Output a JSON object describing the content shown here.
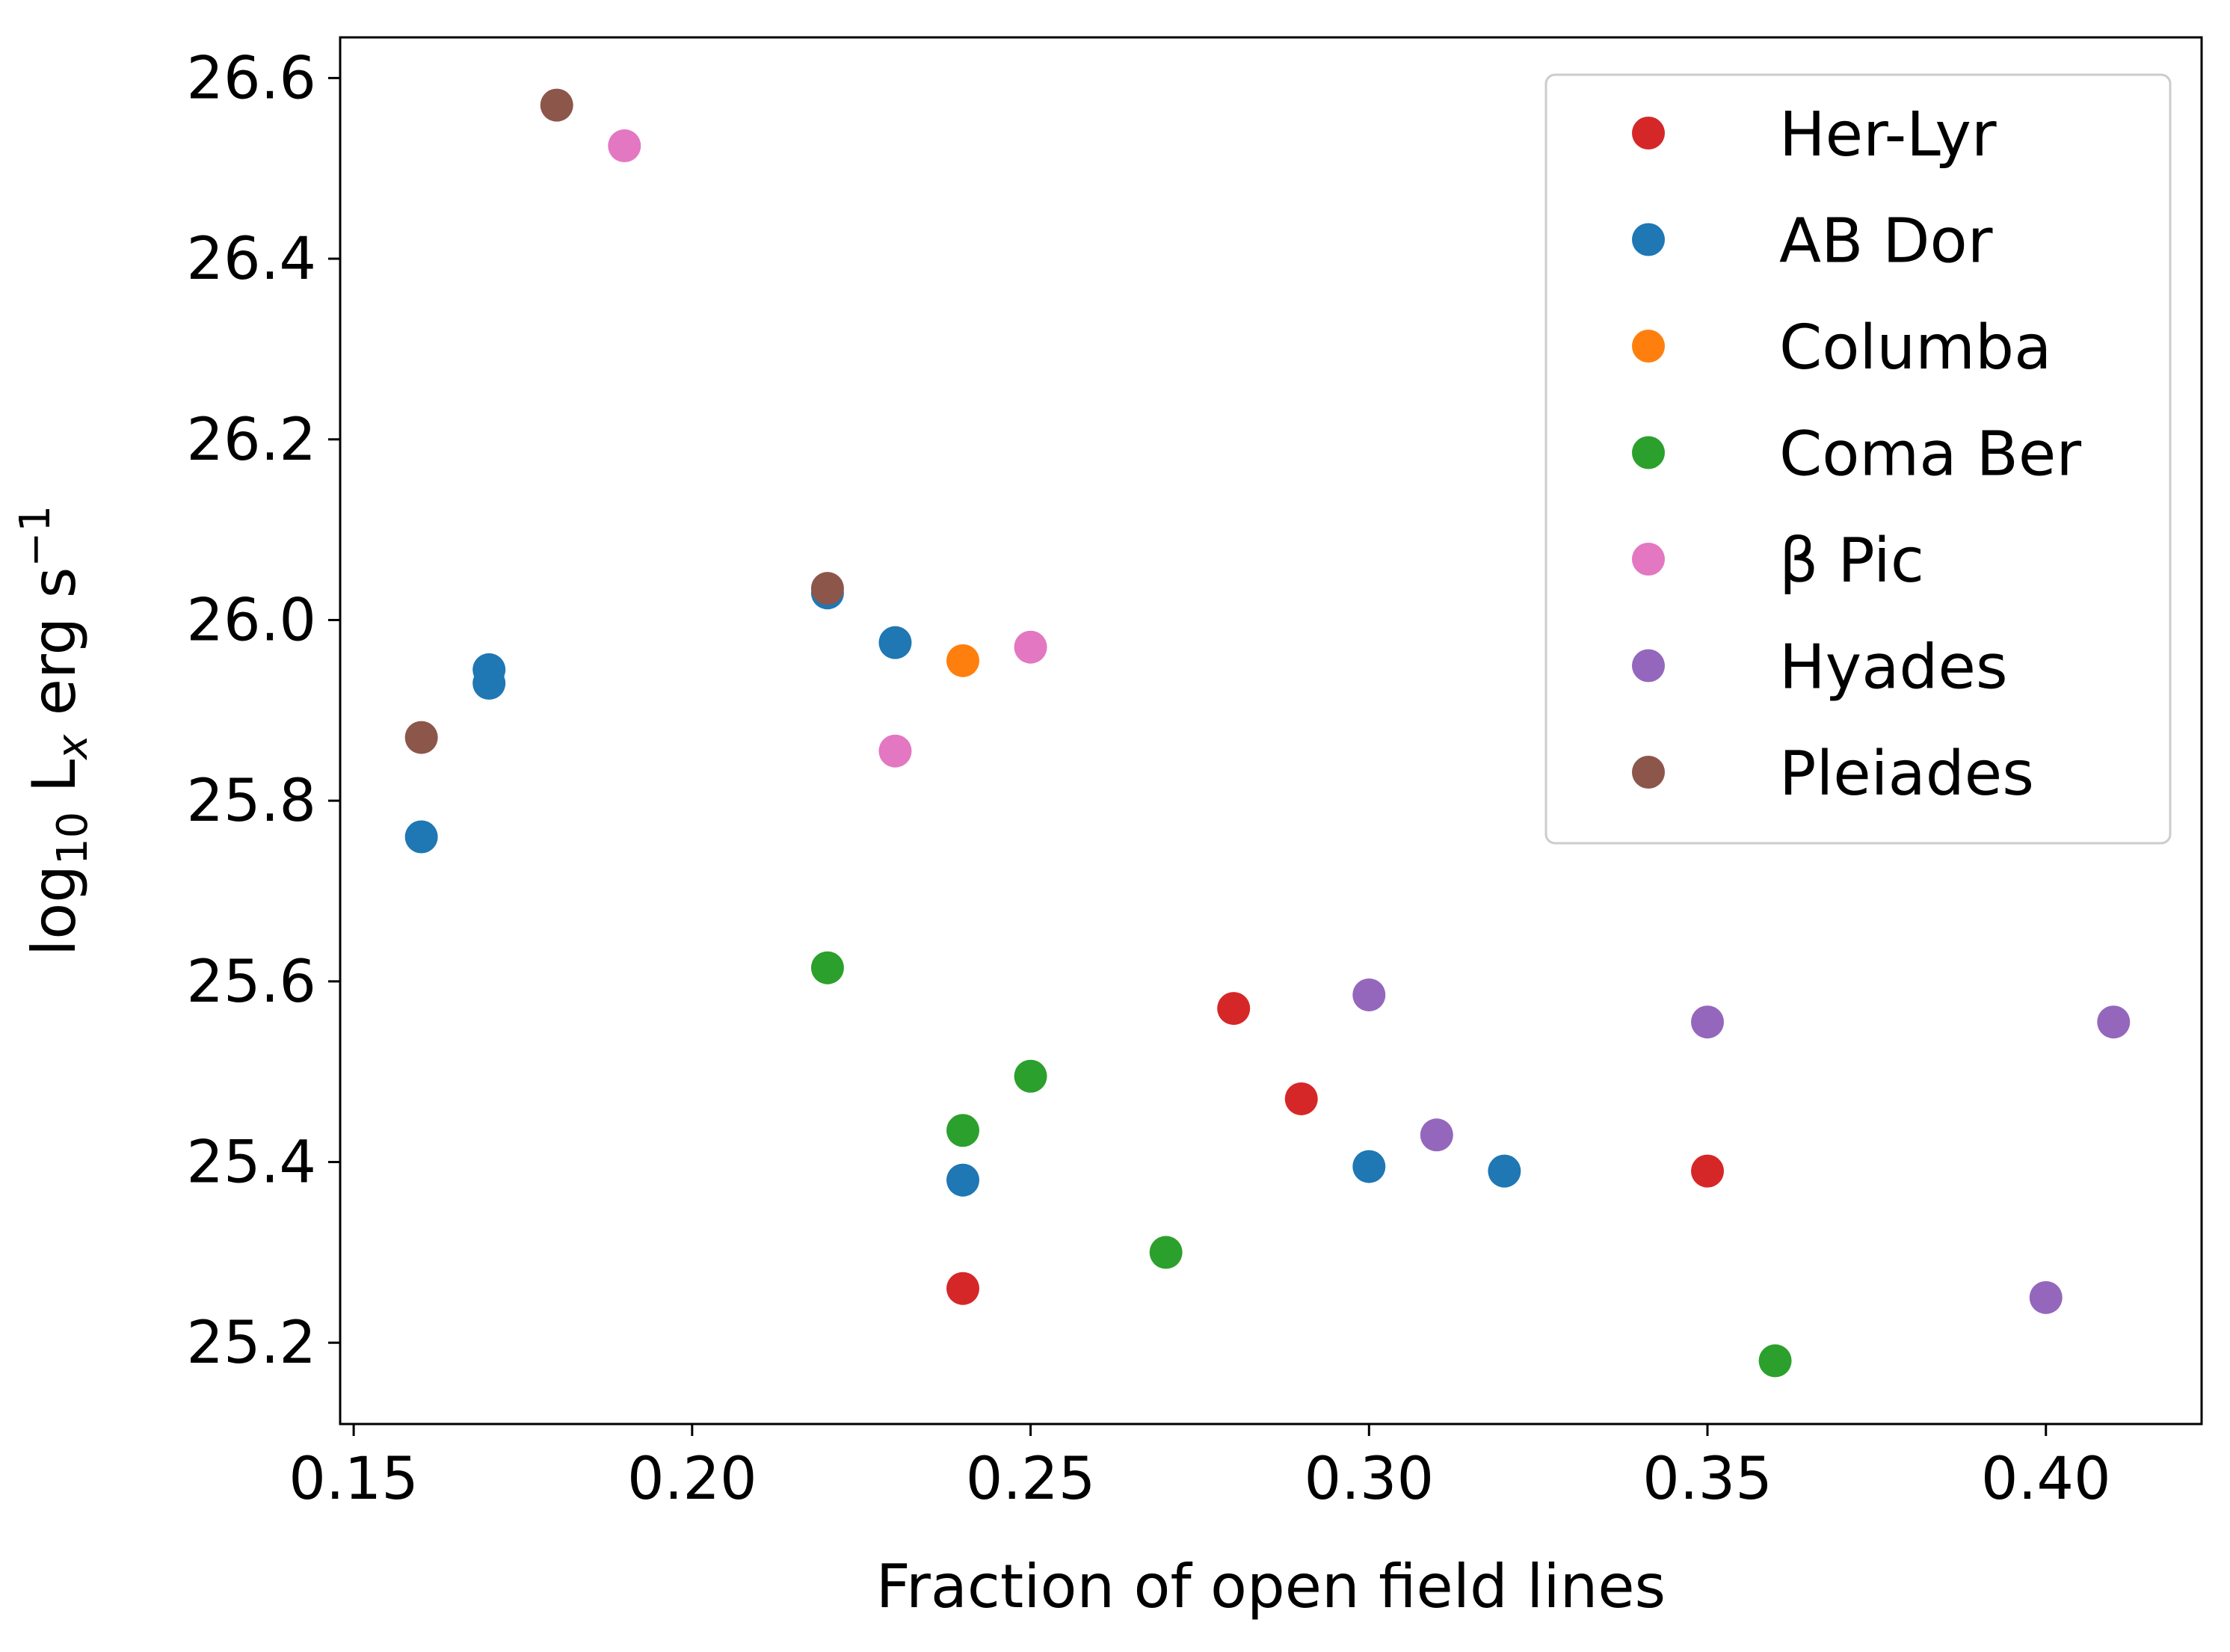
{
  "chart_data": {
    "type": "scatter",
    "xlabel": "Fraction of open field lines",
    "ylabel": {
      "prefix": "log",
      "sub": "10",
      "L": " L",
      "lsub": "x",
      "unit": " erg s",
      "sup": "−1"
    },
    "xlim": [
      0.148,
      0.423
    ],
    "ylim": [
      25.11,
      26.645
    ],
    "xticks": [
      "0.15",
      "0.20",
      "0.25",
      "0.30",
      "0.35",
      "0.40"
    ],
    "yticks": [
      "25.2",
      "25.4",
      "25.6",
      "25.8",
      "26.0",
      "26.2",
      "26.4",
      "26.6"
    ],
    "grid": false,
    "legend_position": "top-right",
    "series": [
      {
        "name": "Her-Lyr",
        "color": "#d62728",
        "points": [
          [
            0.24,
            25.26
          ],
          [
            0.28,
            25.57
          ],
          [
            0.29,
            25.47
          ],
          [
            0.35,
            25.39
          ]
        ]
      },
      {
        "name": "AB Dor",
        "color": "#1f77b4",
        "points": [
          [
            0.16,
            25.76
          ],
          [
            0.17,
            25.945
          ],
          [
            0.17,
            25.93
          ],
          [
            0.22,
            26.03
          ],
          [
            0.23,
            25.975
          ],
          [
            0.24,
            25.38
          ],
          [
            0.3,
            25.395
          ],
          [
            0.32,
            25.39
          ]
        ]
      },
      {
        "name": "Columba",
        "color": "#ff7f0e",
        "points": [
          [
            0.24,
            25.955
          ]
        ]
      },
      {
        "name": "Coma Ber",
        "color": "#2ca02c",
        "points": [
          [
            0.22,
            25.615
          ],
          [
            0.24,
            25.435
          ],
          [
            0.25,
            25.495
          ],
          [
            0.27,
            25.3
          ],
          [
            0.36,
            25.18
          ]
        ]
      },
      {
        "name": "β Pic",
        "color": "#e377c2",
        "points": [
          [
            0.19,
            26.525
          ],
          [
            0.23,
            25.855
          ],
          [
            0.25,
            25.97
          ]
        ]
      },
      {
        "name": "Hyades",
        "color": "#9467bd",
        "points": [
          [
            0.3,
            25.585
          ],
          [
            0.31,
            25.43
          ],
          [
            0.35,
            25.555
          ],
          [
            0.4,
            25.25
          ],
          [
            0.41,
            25.555
          ]
        ]
      },
      {
        "name": "Pleiades",
        "color": "#8c564b",
        "points": [
          [
            0.16,
            25.87
          ],
          [
            0.18,
            26.57
          ],
          [
            0.22,
            26.035
          ]
        ]
      }
    ]
  }
}
